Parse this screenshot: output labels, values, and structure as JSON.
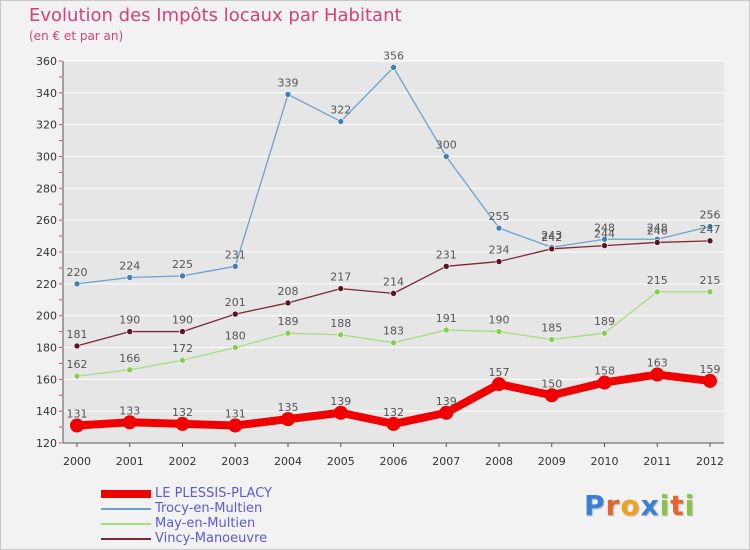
{
  "header": {
    "title": "Evolution des Impôts locaux par Habitant",
    "subtitle": "(en € et par an)"
  },
  "logo": {
    "text": "Proxiti",
    "letters": [
      {
        "ch": "P",
        "color": "#3b7fd0"
      },
      {
        "ch": "r",
        "color": "#e8632b"
      },
      {
        "ch": "o",
        "color": "#f1a21d"
      },
      {
        "ch": "x",
        "color": "#3b7fd0"
      },
      {
        "ch": "i",
        "color": "#8bc34a"
      },
      {
        "ch": "t",
        "color": "#e8632b"
      },
      {
        "ch": "i",
        "color": "#8bc34a"
      }
    ]
  },
  "chart_data": {
    "type": "line",
    "title": "Evolution des Impôts locaux par Habitant",
    "subtitle": "(en € et par an)",
    "xlabel": "",
    "ylabel": "",
    "x": [
      2000,
      2001,
      2002,
      2003,
      2004,
      2005,
      2006,
      2007,
      2008,
      2009,
      2010,
      2011,
      2012
    ],
    "ylim": [
      120,
      360
    ],
    "yticks": [
      120,
      140,
      160,
      180,
      200,
      220,
      240,
      260,
      280,
      300,
      320,
      340,
      360
    ],
    "grid": "horizontal",
    "legend_position": "bottom-left",
    "series": [
      {
        "name": "Trocy-en-Multien",
        "color": "#6ea1cf",
        "marker_color": "#3f7fbf",
        "values": [
          220,
          224,
          225,
          231,
          339,
          322,
          356,
          300,
          255,
          243,
          248,
          248,
          256
        ]
      },
      {
        "name": "Vincy-Manoeuvre",
        "color": "#7a2a35",
        "marker_color": "#5a1520",
        "values": [
          181,
          190,
          190,
          201,
          208,
          217,
          214,
          231,
          234,
          242,
          244,
          246,
          247
        ]
      },
      {
        "name": "May-en-Multien",
        "color": "#a6dc7e",
        "marker_color": "#86cc4e",
        "values": [
          162,
          166,
          172,
          180,
          189,
          188,
          183,
          191,
          190,
          185,
          189,
          215,
          215
        ]
      },
      {
        "name": "LE PLESSIS-PLACY",
        "color": "#f00000",
        "marker_color": "#f00000",
        "thick": true,
        "values": [
          131,
          133,
          132,
          131,
          135,
          139,
          132,
          139,
          157,
          150,
          158,
          163,
          159
        ]
      }
    ],
    "legend": [
      {
        "name": "LE PLESSIS-PLACY",
        "color": "#f00000",
        "thick": true
      },
      {
        "name": "Trocy-en-Multien",
        "color": "#6ea1cf",
        "thick": false
      },
      {
        "name": "May-en-Multien",
        "color": "#a6dc7e",
        "thick": false
      },
      {
        "name": "Vincy-Manoeuvre",
        "color": "#7a2a35",
        "thick": false
      }
    ],
    "label_color": "#555555",
    "axis_color": "#555555",
    "grid_color": "#ffffff",
    "title_color": "#d6407a",
    "legend_text_color": "#5b5bd6"
  }
}
